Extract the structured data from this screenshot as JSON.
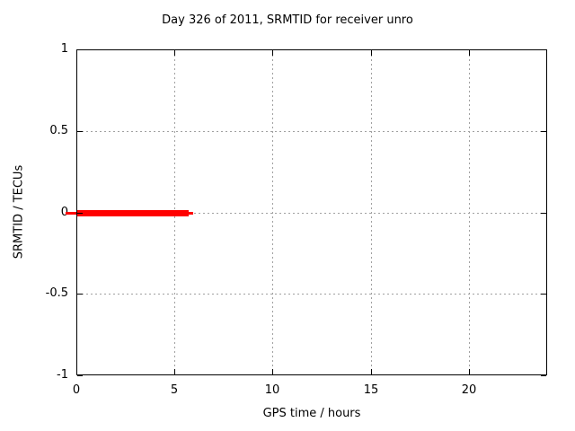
{
  "chart_data": {
    "type": "line",
    "title": "Day 326 of 2011, SRMTID for receiver unro",
    "xlabel": "GPS time / hours",
    "ylabel": "SRMTID / TECUs",
    "xlim": [
      0,
      24
    ],
    "ylim": [
      -1,
      1
    ],
    "grid": true,
    "legend": "none",
    "x_axis": {
      "label": "GPS time / hours",
      "range": [
        0,
        24
      ],
      "ticks": [
        {
          "value": 0,
          "label": "0"
        },
        {
          "value": 5,
          "label": "5"
        },
        {
          "value": 10,
          "label": "10"
        },
        {
          "value": 15,
          "label": "15"
        },
        {
          "value": 20,
          "label": "20"
        }
      ]
    },
    "y_axis": {
      "label": "SRMTID / TECUs",
      "range": [
        -1,
        1
      ],
      "ticks": [
        {
          "value": 1,
          "label": "1"
        },
        {
          "value": 0.5,
          "label": "0.5"
        },
        {
          "value": 0,
          "label": "0"
        },
        {
          "value": -0.5,
          "label": "-0.5"
        },
        {
          "value": -1,
          "label": "-1"
        }
      ]
    },
    "series": [
      {
        "name": "SRMTID",
        "color": "#ff0000",
        "points": [
          [
            0,
            0
          ],
          [
            5.9,
            0
          ]
        ],
        "value": 0,
        "style": "thick horizontal line at y=0 from 0 to ~5.9 hours"
      }
    ],
    "colors": {
      "background": "#ffffff",
      "border": "#000000",
      "text": "#000000",
      "grid": "#a0a0a0",
      "series": "#ff0000"
    }
  }
}
